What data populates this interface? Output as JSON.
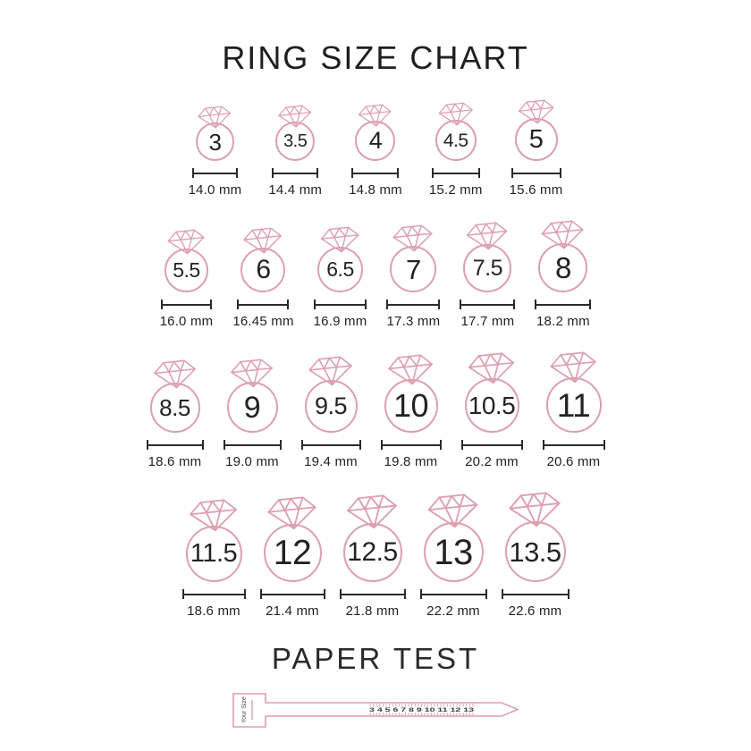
{
  "title": "RING SIZE CHART",
  "colors": {
    "pink": "#dd9fb0",
    "ink": "#2b2b2b"
  },
  "chart_data": {
    "type": "table",
    "title": "RING SIZE CHART",
    "columns": [
      "ring_size",
      "inner_diameter"
    ],
    "rows": [
      [
        {
          "size": "3",
          "mm": "14.0 mm"
        },
        {
          "size": "3.5",
          "mm": "14.4 mm"
        },
        {
          "size": "4",
          "mm": "14.8 mm"
        },
        {
          "size": "4.5",
          "mm": "15.2 mm"
        },
        {
          "size": "5",
          "mm": "15.6 mm"
        }
      ],
      [
        {
          "size": "5.5",
          "mm": "16.0 mm"
        },
        {
          "size": "6",
          "mm": "16.45 mm"
        },
        {
          "size": "6.5",
          "mm": "16.9 mm"
        },
        {
          "size": "7",
          "mm": "17.3 mm"
        },
        {
          "size": "7.5",
          "mm": "17.7 mm"
        },
        {
          "size": "8",
          "mm": "18.2 mm"
        }
      ],
      [
        {
          "size": "8.5",
          "mm": "18.6 mm"
        },
        {
          "size": "9",
          "mm": "19.0 mm"
        },
        {
          "size": "9.5",
          "mm": "19.4 mm"
        },
        {
          "size": "10",
          "mm": "19.8 mm"
        },
        {
          "size": "10.5",
          "mm": "20.2 mm"
        },
        {
          "size": "11",
          "mm": "20.6 mm"
        }
      ],
      [
        {
          "size": "11.5",
          "mm": "18.6 mm"
        },
        {
          "size": "12",
          "mm": "21.4 mm"
        },
        {
          "size": "12.5",
          "mm": "21.8 mm"
        },
        {
          "size": "13",
          "mm": "22.2 mm"
        },
        {
          "size": "13.5",
          "mm": "22.6 mm"
        }
      ]
    ]
  },
  "paper_test": {
    "title": "PAPER TEST",
    "strip_label": "Your Size",
    "ruler_numbers": "3 4 5 6 7 8 9 10 11 12 13"
  }
}
